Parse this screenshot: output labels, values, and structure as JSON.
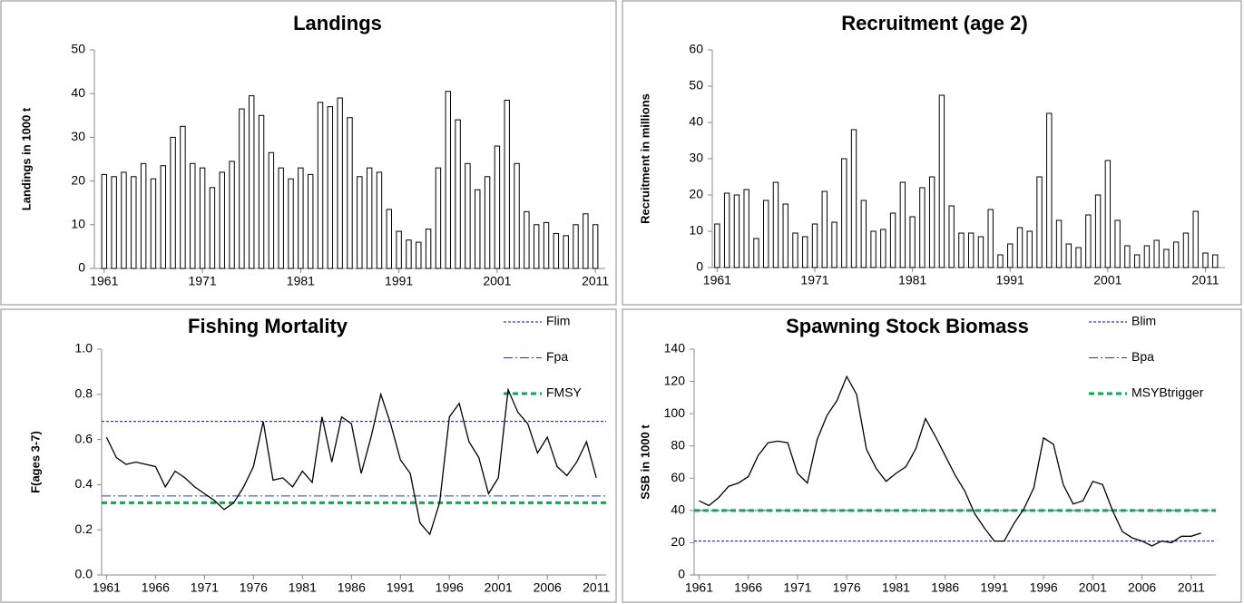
{
  "chart_data": [
    {
      "type": "bar",
      "title": "Landings",
      "ylabel": "Landings in 1000 t",
      "color": "#ffffff",
      "edgecolor": "#000000",
      "x": [
        1961,
        1962,
        1963,
        1964,
        1965,
        1966,
        1967,
        1968,
        1969,
        1970,
        1971,
        1972,
        1973,
        1974,
        1975,
        1976,
        1977,
        1978,
        1979,
        1980,
        1981,
        1982,
        1983,
        1984,
        1985,
        1986,
        1987,
        1988,
        1989,
        1990,
        1991,
        1992,
        1993,
        1994,
        1995,
        1996,
        1997,
        1998,
        1999,
        2000,
        2001,
        2002,
        2003,
        2004,
        2005,
        2006,
        2007,
        2008,
        2009,
        2010,
        2011
      ],
      "values": [
        21.5,
        21,
        22,
        21,
        24,
        20.5,
        23.5,
        30,
        32.5,
        24,
        23,
        18.5,
        22,
        24.5,
        36.5,
        39.5,
        35,
        26.5,
        23,
        20.5,
        23,
        21.5,
        38,
        37,
        39,
        34.5,
        21,
        23,
        22,
        13.5,
        8.5,
        6.5,
        6,
        9,
        23,
        40.5,
        34,
        24,
        18,
        21,
        28,
        38.5,
        24,
        13,
        10,
        10.5,
        8,
        7.5,
        10,
        12.5,
        10
      ],
      "xlim": [
        1960,
        2012
      ],
      "xticks": [
        1961,
        1971,
        1981,
        1991,
        2001,
        2011
      ],
      "ylim": [
        0,
        50
      ],
      "yticks": [
        0,
        10,
        20,
        30,
        40,
        50
      ]
    },
    {
      "type": "bar",
      "title": "Recruitment (age 2)",
      "ylabel": "Recruitment in millions",
      "color": "#ffffff",
      "edgecolor": "#000000",
      "x": [
        1961,
        1962,
        1963,
        1964,
        1965,
        1966,
        1967,
        1968,
        1969,
        1970,
        1971,
        1972,
        1973,
        1974,
        1975,
        1976,
        1977,
        1978,
        1979,
        1980,
        1981,
        1982,
        1983,
        1984,
        1985,
        1986,
        1987,
        1988,
        1989,
        1990,
        1991,
        1992,
        1993,
        1994,
        1995,
        1996,
        1997,
        1998,
        1999,
        2000,
        2001,
        2002,
        2003,
        2004,
        2005,
        2006,
        2007,
        2008,
        2009,
        2010,
        2011,
        2012
      ],
      "values": [
        12,
        20.5,
        20,
        21.5,
        8,
        18.5,
        23.5,
        17.5,
        9.5,
        8.5,
        12,
        21,
        12.5,
        30,
        38,
        18.5,
        10,
        10.5,
        15,
        23.5,
        14,
        22,
        25,
        47.5,
        17,
        9.5,
        9.5,
        8.5,
        16,
        3.5,
        6.5,
        11,
        10,
        25,
        42.5,
        13,
        6.5,
        5.5,
        14.5,
        20,
        29.5,
        13,
        6,
        3.5,
        6,
        7.5,
        5,
        7,
        9.5,
        15.5,
        4,
        3.5
      ],
      "xlim": [
        1960.5,
        2013
      ],
      "xticks": [
        1961,
        1971,
        1981,
        1991,
        2001,
        2011
      ],
      "ylim": [
        0,
        60
      ],
      "yticks": [
        0,
        10,
        20,
        30,
        40,
        50,
        60
      ]
    },
    {
      "type": "line",
      "title": "Fishing Mortality",
      "ylabel": "F(ages 3-7)",
      "color": "#000000",
      "x": [
        1961,
        1962,
        1963,
        1964,
        1965,
        1966,
        1967,
        1968,
        1969,
        1970,
        1971,
        1972,
        1973,
        1974,
        1975,
        1976,
        1977,
        1978,
        1979,
        1980,
        1981,
        1982,
        1983,
        1984,
        1985,
        1986,
        1987,
        1988,
        1989,
        1990,
        1991,
        1992,
        1993,
        1994,
        1995,
        1996,
        1997,
        1998,
        1999,
        2000,
        2001,
        2002,
        2003,
        2004,
        2005,
        2006,
        2007,
        2008,
        2009,
        2010,
        2011
      ],
      "values": [
        0.61,
        0.52,
        0.49,
        0.5,
        0.49,
        0.48,
        0.39,
        0.46,
        0.43,
        0.39,
        0.36,
        0.33,
        0.29,
        0.32,
        0.39,
        0.48,
        0.68,
        0.42,
        0.43,
        0.39,
        0.46,
        0.41,
        0.7,
        0.5,
        0.7,
        0.67,
        0.45,
        0.61,
        0.8,
        0.67,
        0.51,
        0.45,
        0.23,
        0.18,
        0.32,
        0.7,
        0.76,
        0.59,
        0.52,
        0.36,
        0.43,
        0.82,
        0.72,
        0.67,
        0.54,
        0.61,
        0.48,
        0.44,
        0.5,
        0.59,
        0.43
      ],
      "reference_lines": [
        {
          "name": "Flim",
          "value": 0.68,
          "color": "#0000ff",
          "style": "dotted",
          "linewidth": 1
        },
        {
          "name": "Fpa",
          "value": 0.35,
          "color": "#3333cc",
          "style": "dashdot",
          "linewidth": 1
        },
        {
          "name": "FMSY",
          "value": 0.32,
          "color": "#00b050",
          "style": "dashed",
          "linewidth": 3
        }
      ],
      "xlim": [
        1960.5,
        2012
      ],
      "xticks": [
        1961,
        1966,
        1971,
        1976,
        1981,
        1986,
        1991,
        1996,
        2001,
        2006,
        2011
      ],
      "ylim": [
        0,
        1
      ],
      "yticks": [
        {
          "value": 0,
          "label": "0.0"
        },
        0.2,
        0.4,
        0.6,
        0.8,
        {
          "value": 1,
          "label": "1.0"
        }
      ]
    },
    {
      "type": "line",
      "title": "Spawning Stock Biomass",
      "ylabel": "SSB in 1000 t",
      "color": "#000000",
      "x": [
        1961,
        1962,
        1963,
        1964,
        1965,
        1966,
        1967,
        1968,
        1969,
        1970,
        1971,
        1972,
        1973,
        1974,
        1975,
        1976,
        1977,
        1978,
        1979,
        1980,
        1981,
        1982,
        1983,
        1984,
        1985,
        1986,
        1987,
        1988,
        1989,
        1990,
        1991,
        1992,
        1993,
        1994,
        1995,
        1996,
        1997,
        1998,
        1999,
        2000,
        2001,
        2002,
        2003,
        2004,
        2005,
        2006,
        2007,
        2008,
        2009,
        2010,
        2011,
        2012
      ],
      "values": [
        46,
        43,
        48,
        55,
        57,
        61,
        74,
        82,
        83,
        82,
        63,
        57,
        84,
        99,
        108,
        123,
        112,
        78,
        66,
        58,
        63,
        67,
        78,
        97,
        86,
        74,
        62,
        52,
        38,
        29,
        21,
        21,
        32,
        41,
        54,
        85,
        81,
        56,
        44,
        46,
        58,
        56,
        40,
        27,
        23,
        21,
        18,
        21,
        20,
        24,
        24,
        26
      ],
      "reference_lines": [
        {
          "name": "Blim",
          "value": 21,
          "color": "#0000ff",
          "style": "dotted",
          "linewidth": 1
        },
        {
          "name": "Bpa",
          "value": 40,
          "color": "#3333cc",
          "style": "dashdot",
          "linewidth": 1
        },
        {
          "name": "MSYBtrigger",
          "value": 40,
          "color": "#00b050",
          "style": "dashed",
          "linewidth": 3
        }
      ],
      "xlim": [
        1960.5,
        2013.5
      ],
      "xticks": [
        1961,
        1966,
        1971,
        1976,
        1981,
        1986,
        1991,
        1996,
        2001,
        2006,
        2011
      ],
      "ylim": [
        0,
        140
      ],
      "yticks": [
        0,
        20,
        40,
        60,
        80,
        100,
        120,
        140
      ]
    }
  ]
}
